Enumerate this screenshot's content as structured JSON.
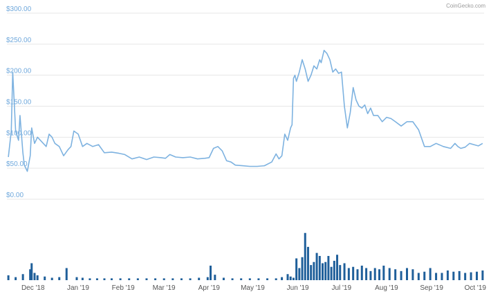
{
  "credit": "CoinGecko.com",
  "colors": {
    "price_line": "#7db2e0",
    "volume_bar": "#1f5f9a",
    "grid": "#e6e6e6",
    "y_label": "#6fa8dc"
  },
  "chart_data": [
    {
      "type": "line",
      "title": "",
      "xlabel": "",
      "ylabel": "",
      "ylim": [
        0,
        300
      ],
      "y_ticks": [
        "$0.00",
        "$50.00",
        "$100.00",
        "$150.00",
        "$200.00",
        "$250.00",
        "$300.00"
      ],
      "grid": true,
      "x_ticks": [
        "Dec '18",
        "Jan '19",
        "Feb '19",
        "Mar '19",
        "Apr '19",
        "May '19",
        "Jun '19",
        "Jul '19",
        "Aug '19",
        "Sep '19",
        "Oct '19"
      ],
      "series": [
        {
          "x": [
            "2018-11-15",
            "2018-11-17",
            "2018-11-18",
            "2018-11-20",
            "2018-11-22",
            "2018-11-23",
            "2018-11-25",
            "2018-11-26",
            "2018-11-28",
            "2018-11-30",
            "2018-12-01",
            "2018-12-03",
            "2018-12-05",
            "2018-12-07",
            "2018-12-09",
            "2018-12-11",
            "2018-12-13",
            "2018-12-15",
            "2018-12-17",
            "2018-12-20",
            "2018-12-23",
            "2018-12-26",
            "2018-12-28",
            "2018-12-30",
            "2019-01-02",
            "2019-01-05",
            "2019-01-08",
            "2019-01-12",
            "2019-01-16",
            "2019-01-20",
            "2019-01-25",
            "2019-01-30",
            "2019-02-03",
            "2019-02-08",
            "2019-02-13",
            "2019-02-18",
            "2019-02-23",
            "2019-02-28",
            "2019-03-03",
            "2019-03-06",
            "2019-03-10",
            "2019-03-15",
            "2019-03-20",
            "2019-03-25",
            "2019-03-30",
            "2019-04-02",
            "2019-04-05",
            "2019-04-08",
            "2019-04-11",
            "2019-04-14",
            "2019-04-17",
            "2019-04-20",
            "2019-04-25",
            "2019-04-30",
            "2019-05-05",
            "2019-05-10",
            "2019-05-15",
            "2019-05-18",
            "2019-05-20",
            "2019-05-22",
            "2019-05-24",
            "2019-05-26",
            "2019-05-28",
            "2019-05-29",
            "2019-05-30",
            "2019-05-31",
            "2019-06-01",
            "2019-06-03",
            "2019-06-05",
            "2019-06-07",
            "2019-06-09",
            "2019-06-11",
            "2019-06-13",
            "2019-06-15",
            "2019-06-17",
            "2019-06-18",
            "2019-06-20",
            "2019-06-22",
            "2019-06-24",
            "2019-06-26",
            "2019-06-28",
            "2019-06-30",
            "2019-07-02",
            "2019-07-04",
            "2019-07-06",
            "2019-07-08",
            "2019-07-10",
            "2019-07-12",
            "2019-07-14",
            "2019-07-16",
            "2019-07-18",
            "2019-07-20",
            "2019-07-22",
            "2019-07-24",
            "2019-07-27",
            "2019-07-30",
            "2019-08-02",
            "2019-08-05",
            "2019-08-08",
            "2019-08-12",
            "2019-08-16",
            "2019-08-20",
            "2019-08-24",
            "2019-08-28",
            "2019-09-01",
            "2019-09-05",
            "2019-09-10",
            "2019-09-15",
            "2019-09-18",
            "2019-09-20",
            "2019-09-22",
            "2019-09-25",
            "2019-09-28",
            "2019-10-01",
            "2019-10-04",
            "2019-10-07"
          ],
          "values": [
            68,
            110,
            205,
            110,
            95,
            135,
            75,
            55,
            45,
            70,
            115,
            90,
            100,
            95,
            90,
            85,
            105,
            100,
            90,
            85,
            70,
            80,
            85,
            110,
            105,
            85,
            90,
            85,
            88,
            75,
            76,
            74,
            72,
            65,
            68,
            64,
            68,
            67,
            66,
            72,
            68,
            67,
            68,
            65,
            66,
            67,
            82,
            85,
            78,
            62,
            60,
            55,
            54,
            53,
            53,
            54,
            60,
            73,
            65,
            70,
            105,
            95,
            115,
            120,
            195,
            200,
            190,
            205,
            225,
            210,
            190,
            200,
            215,
            210,
            225,
            220,
            240,
            235,
            225,
            205,
            210,
            203,
            205,
            150,
            115,
            140,
            180,
            160,
            150,
            147,
            152,
            138,
            147,
            135,
            135,
            125,
            132,
            130,
            125,
            118,
            125,
            125,
            112,
            85,
            85,
            90,
            85,
            82,
            90,
            85,
            82,
            84,
            90,
            88,
            86,
            90
          ]
        }
      ]
    },
    {
      "type": "bar",
      "title": "",
      "xlabel": "",
      "ylabel": "",
      "series": [
        {
          "name": "",
          "x": [
            "2018-11-15",
            "2018-11-20",
            "2018-11-25",
            "2018-11-30",
            "2018-12-01",
            "2018-12-03",
            "2018-12-05",
            "2018-12-10",
            "2018-12-15",
            "2018-12-20",
            "2018-12-25",
            "2019-01-01",
            "2019-01-05",
            "2019-01-10",
            "2019-01-15",
            "2019-01-20",
            "2019-01-25",
            "2019-01-31",
            "2019-02-06",
            "2019-02-12",
            "2019-02-18",
            "2019-02-24",
            "2019-03-02",
            "2019-03-08",
            "2019-03-14",
            "2019-03-20",
            "2019-03-26",
            "2019-04-01",
            "2019-04-03",
            "2019-04-06",
            "2019-04-12",
            "2019-04-18",
            "2019-04-24",
            "2019-04-30",
            "2019-05-06",
            "2019-05-12",
            "2019-05-18",
            "2019-05-22",
            "2019-05-26",
            "2019-05-28",
            "2019-05-30",
            "2019-06-01",
            "2019-06-03",
            "2019-06-05",
            "2019-06-07",
            "2019-06-09",
            "2019-06-11",
            "2019-06-13",
            "2019-06-15",
            "2019-06-17",
            "2019-06-19",
            "2019-06-21",
            "2019-06-23",
            "2019-06-25",
            "2019-06-27",
            "2019-06-29",
            "2019-07-01",
            "2019-07-04",
            "2019-07-07",
            "2019-07-10",
            "2019-07-13",
            "2019-07-16",
            "2019-07-19",
            "2019-07-22",
            "2019-07-25",
            "2019-07-28",
            "2019-07-31",
            "2019-08-04",
            "2019-08-08",
            "2019-08-12",
            "2019-08-16",
            "2019-08-20",
            "2019-08-24",
            "2019-08-28",
            "2019-09-01",
            "2019-09-05",
            "2019-09-09",
            "2019-09-13",
            "2019-09-17",
            "2019-09-21",
            "2019-09-25",
            "2019-09-29",
            "2019-10-03",
            "2019-10-07"
          ],
          "values": [
            8,
            5,
            10,
            18,
            28,
            12,
            8,
            6,
            4,
            5,
            20,
            5,
            4,
            3,
            3,
            3,
            3,
            3,
            3,
            3,
            3,
            3,
            3,
            3,
            3,
            3,
            4,
            5,
            24,
            9,
            4,
            3,
            3,
            3,
            3,
            3,
            3,
            5,
            10,
            6,
            4,
            36,
            20,
            38,
            78,
            55,
            25,
            30,
            45,
            40,
            28,
            30,
            40,
            22,
            32,
            42,
            25,
            28,
            20,
            22,
            18,
            24,
            20,
            15,
            20,
            18,
            24,
            20,
            18,
            15,
            20,
            18,
            12,
            14,
            20,
            12,
            12,
            16,
            14,
            15,
            12,
            13,
            14,
            16
          ]
        }
      ]
    }
  ]
}
